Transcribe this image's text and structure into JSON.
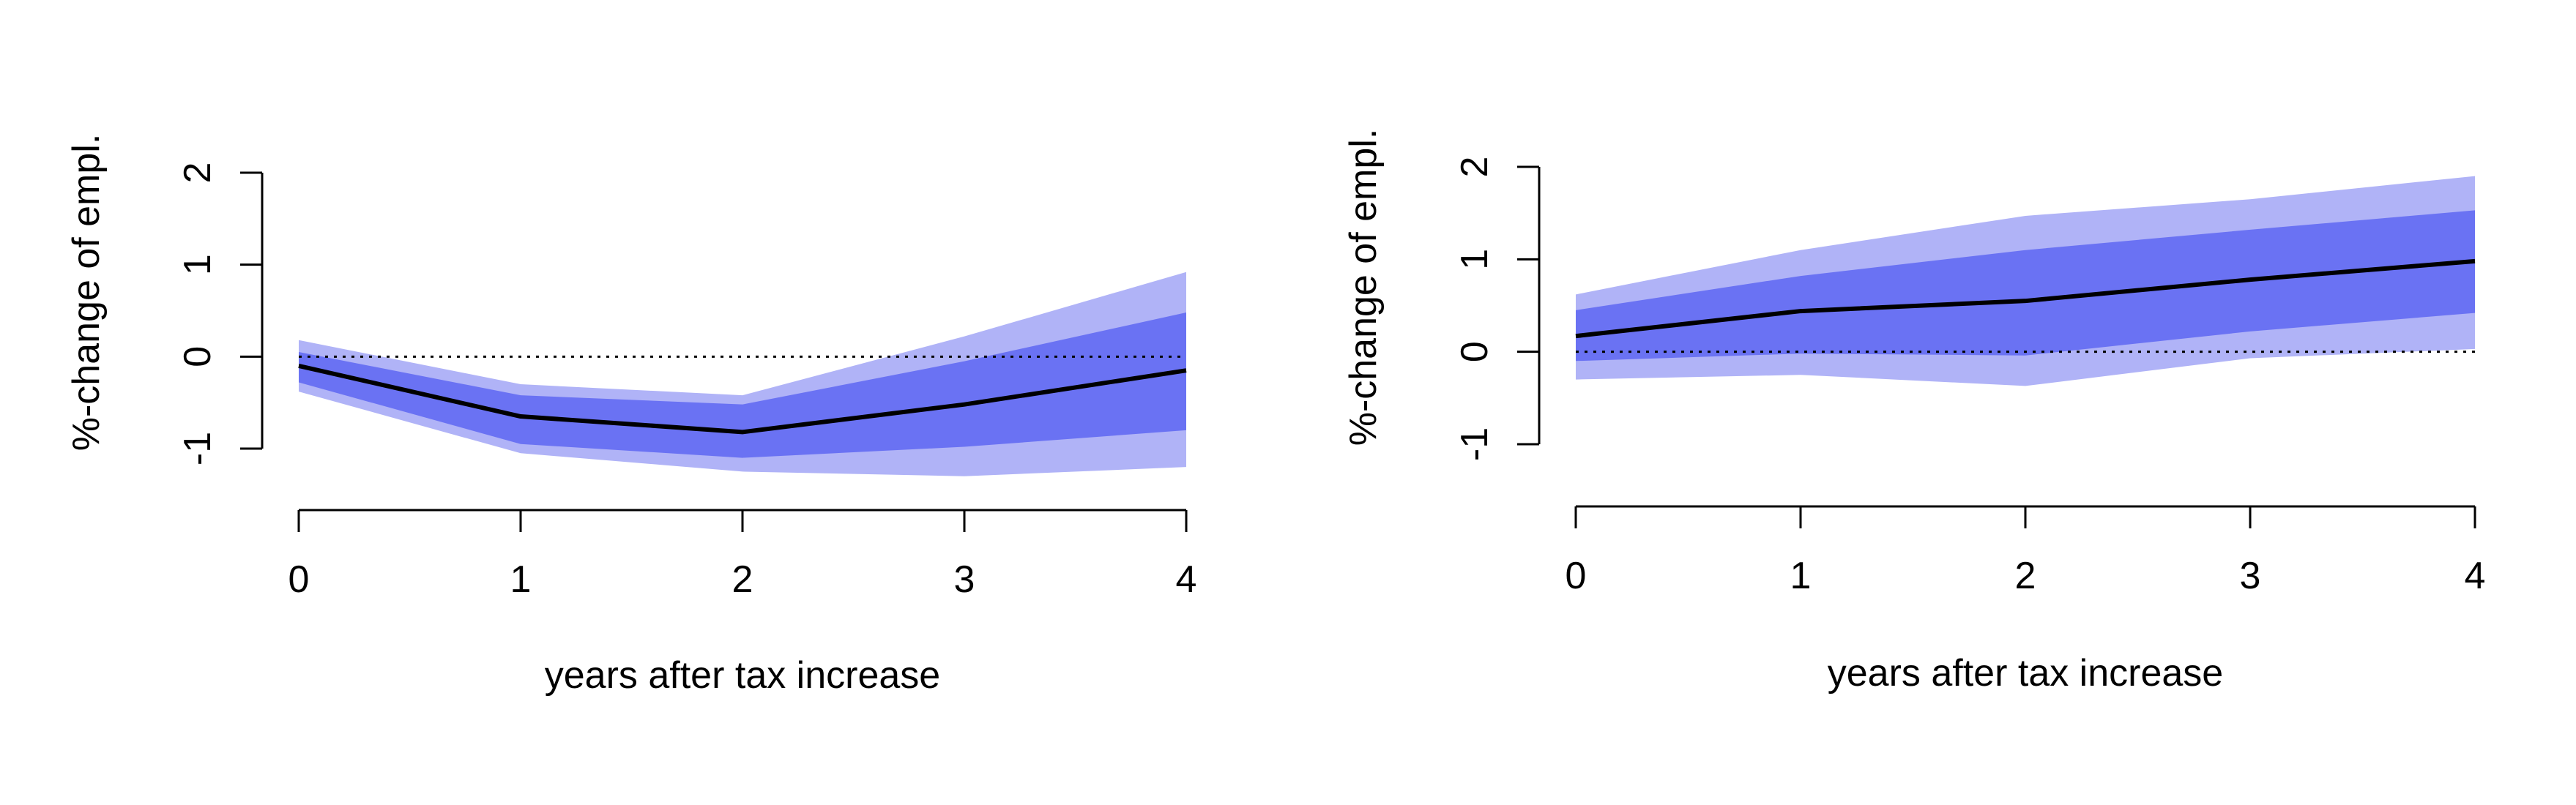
{
  "chart_data": [
    {
      "type": "area",
      "title": "",
      "xlabel": "years after tax increase",
      "ylabel": "%-change of empl.",
      "xlim": [
        0,
        4
      ],
      "ylim": [
        -1,
        2
      ],
      "x_ticks": [
        "0",
        "1",
        "2",
        "3",
        "4"
      ],
      "y_ticks": [
        "-1",
        "0",
        "1",
        "2"
      ],
      "reference_line": 0,
      "x": [
        0,
        1,
        2,
        3,
        4
      ],
      "estimate": [
        -0.1,
        -0.65,
        -0.82,
        -0.52,
        -0.15
      ],
      "band_inner": {
        "lower": [
          -0.28,
          -0.95,
          -1.1,
          -0.98,
          -0.8
        ],
        "upper": [
          0.05,
          -0.42,
          -0.52,
          -0.05,
          0.48
        ]
      },
      "band_outer": {
        "lower": [
          -0.38,
          -1.05,
          -1.25,
          -1.3,
          -1.2
        ],
        "upper": [
          0.18,
          -0.3,
          -0.42,
          0.22,
          0.92
        ]
      },
      "colors": {
        "band_outer": "#b0b3f7",
        "band_inner": "#6a72f3",
        "estimate": "#000000"
      }
    },
    {
      "type": "area",
      "title": "",
      "xlabel": "years after tax increase",
      "ylabel": "%-change of empl.",
      "xlim": [
        0,
        4
      ],
      "ylim": [
        -1,
        2
      ],
      "x_ticks": [
        "0",
        "1",
        "2",
        "3",
        "4"
      ],
      "y_ticks": [
        "-1",
        "0",
        "1",
        "2"
      ],
      "reference_line": 0,
      "x": [
        0,
        1,
        2,
        3,
        4
      ],
      "estimate": [
        0.17,
        0.44,
        0.55,
        0.78,
        0.98
      ],
      "band_inner": {
        "lower": [
          -0.1,
          -0.02,
          -0.04,
          0.22,
          0.42
        ],
        "upper": [
          0.45,
          0.82,
          1.1,
          1.32,
          1.53
        ]
      },
      "band_outer": {
        "lower": [
          -0.3,
          -0.25,
          -0.37,
          -0.07,
          0.03
        ],
        "upper": [
          0.62,
          1.1,
          1.47,
          1.65,
          1.9
        ]
      },
      "colors": {
        "band_outer": "#b0b3f7",
        "band_inner": "#6a72f3",
        "estimate": "#000000"
      }
    }
  ]
}
